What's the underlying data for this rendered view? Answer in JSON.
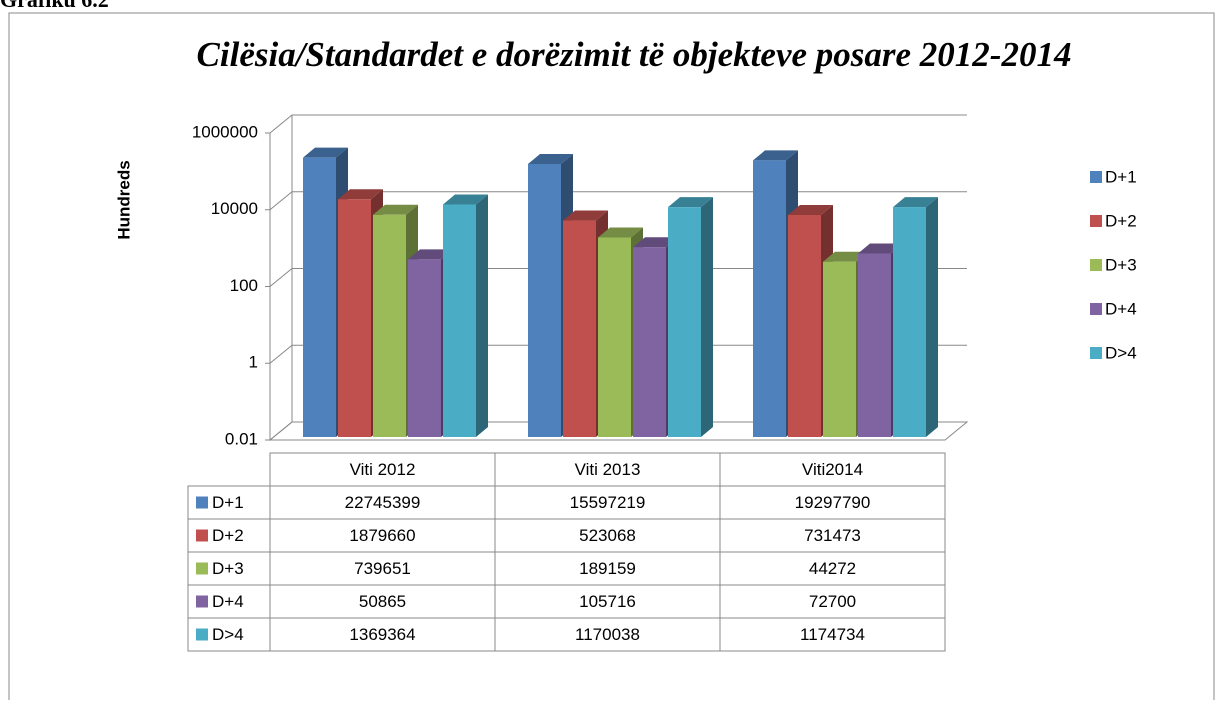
{
  "caption": "Grafiku 6.2",
  "chart_data": {
    "type": "bar3d",
    "title": "Cilësia/Standardet e dorëzimit të objekteve posare  2012-2014",
    "ylabel": "Hundreds",
    "categories": [
      "Viti 2012",
      "Viti 2013",
      "Viti2014"
    ],
    "series": [
      {
        "name": "D+1",
        "color": "#4f81bd",
        "values": [
          227453.99,
          155972.19,
          192977.9
        ],
        "value_labels": [
          "22745399",
          "15597219",
          "19297790"
        ]
      },
      {
        "name": "D+2",
        "color": "#c0504d",
        "values": [
          18796.6,
          5230.68,
          7314.73
        ],
        "value_labels": [
          "1879660",
          "523068",
          "731473"
        ]
      },
      {
        "name": "D+3",
        "color": "#9bbb59",
        "values": [
          7396.51,
          1891.59,
          442.72
        ],
        "value_labels": [
          "739651",
          "189159",
          "44272"
        ]
      },
      {
        "name": "D+4",
        "color": "#8064a2",
        "values": [
          508.65,
          1057.16,
          727
        ],
        "value_labels": [
          "50865",
          "105716",
          "72700"
        ]
      },
      {
        "name": "D>4",
        "color": "#4bacc6",
        "values": [
          13693.64,
          11700.38,
          11747.34
        ],
        "value_labels": [
          "1369364",
          "1170038",
          "1174734"
        ]
      }
    ],
    "log_scale": true,
    "ylim": [
      0.01,
      1000000
    ],
    "yticks": [
      0.01,
      1,
      100,
      10000,
      1000000
    ],
    "grid": true,
    "legend": "right",
    "data_table": true
  }
}
